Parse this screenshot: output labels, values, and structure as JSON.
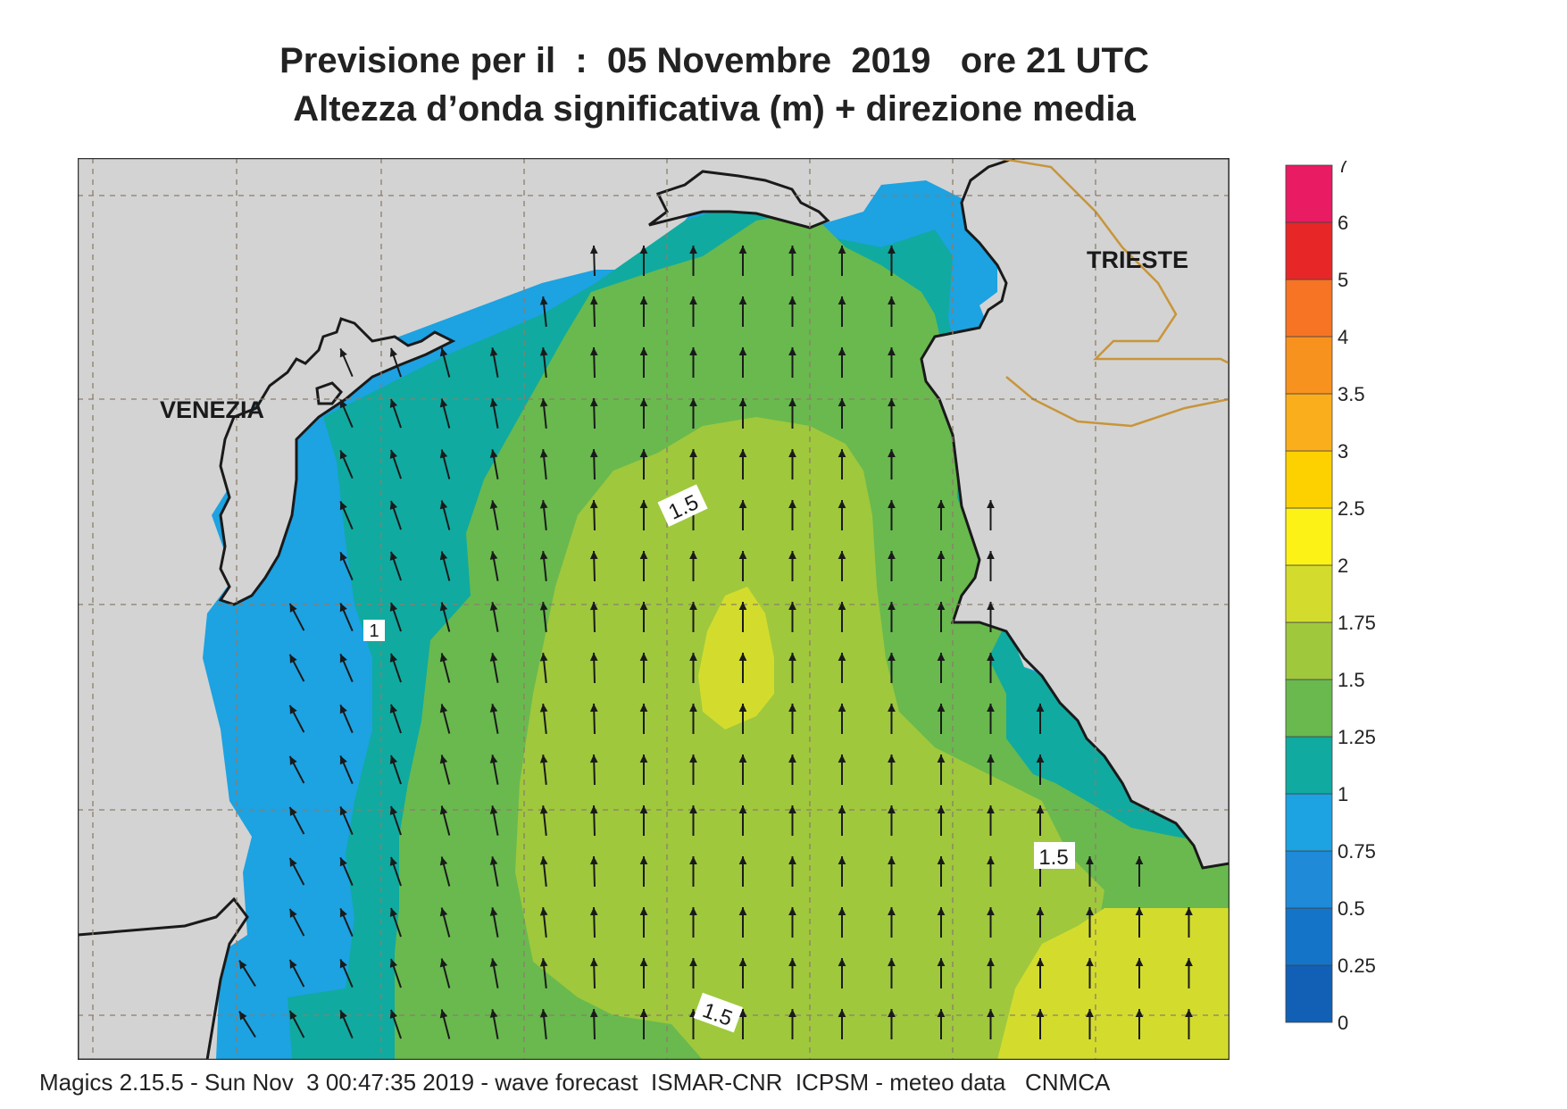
{
  "title_line1": "Previsione per il  :  05 Novembre  2019   ore 21 UTC",
  "title_line2": "Altezza d’onda significativa (m) + direzione media",
  "footer": "Magics 2.15.5 - Sun Nov  3 00:47:35 2019 - wave forecast  ISMAR-CNR  ICPSM - meteo data   CNMCA",
  "cities": [
    {
      "name": "VENEZIA"
    },
    {
      "name": "TRIESTE"
    }
  ],
  "contour_labels": [
    "1.5",
    "1",
    "1.5",
    "1.5"
  ],
  "legend": {
    "levels": [
      "0",
      "0.25",
      "0.5",
      "0.75",
      "1",
      "1.25",
      "1.5",
      "1.75",
      "2",
      "2.5",
      "3",
      "3.5",
      "4",
      "5",
      "6",
      "7"
    ],
    "colors": [
      "#1160b5",
      "#1474c8",
      "#1e8ad8",
      "#1da2e2",
      "#10aaa0",
      "#69b94e",
      "#9fc83d",
      "#d3dc2d",
      "#fdf216",
      "#fdd100",
      "#fbae1c",
      "#f8921f",
      "#f67424",
      "#e72727",
      "#e81b63"
    ]
  },
  "colors": {
    "land": "#d3d3d3",
    "coast": "#1a1a1a",
    "border": "#c8953a",
    "grid": "#8c7e6a",
    "arrow": "#1a1a1a"
  }
}
